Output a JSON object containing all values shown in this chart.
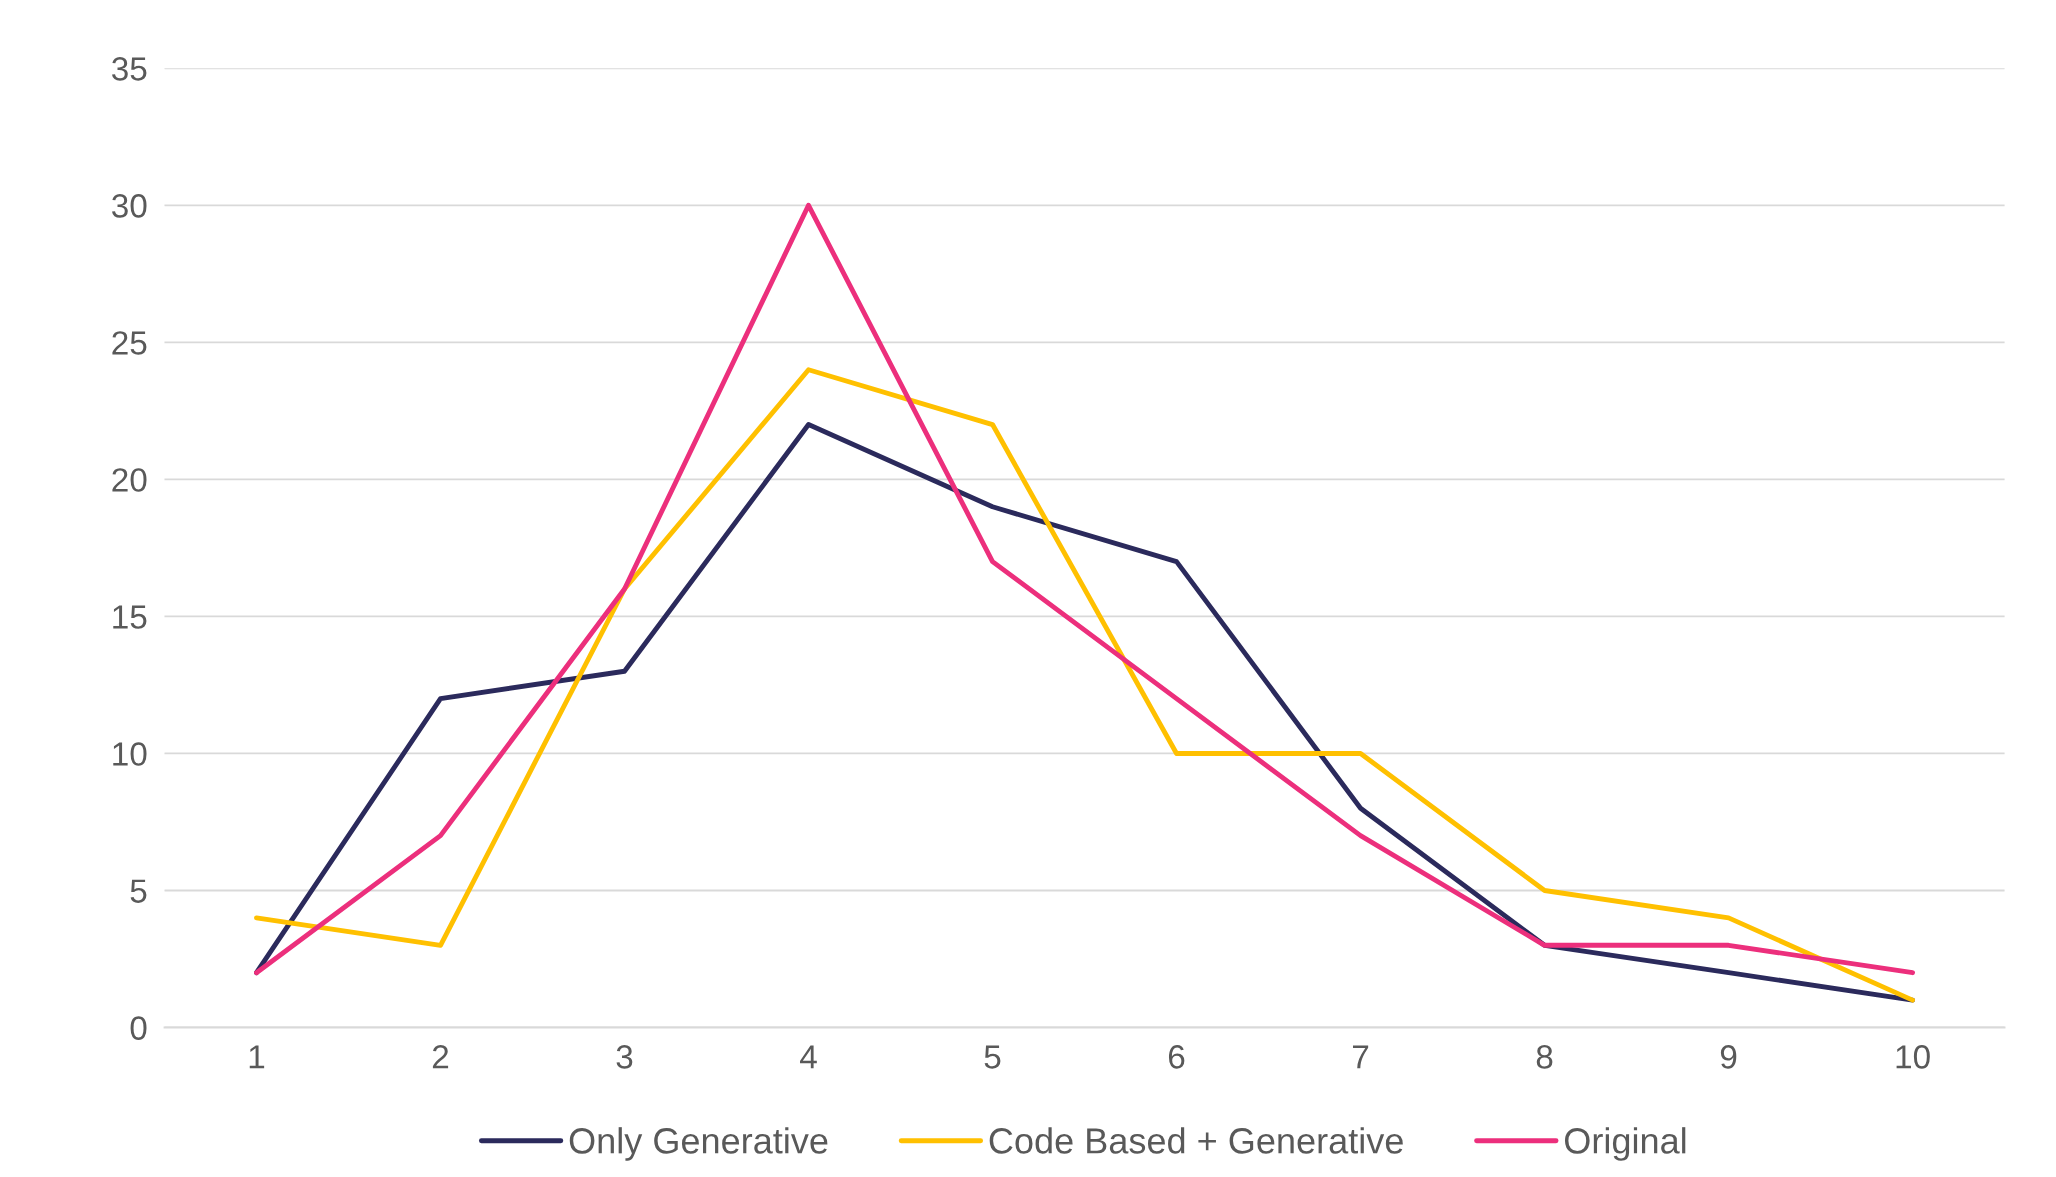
{
  "chart_data": {
    "type": "line",
    "categories": [
      "1",
      "2",
      "3",
      "4",
      "5",
      "6",
      "7",
      "8",
      "9",
      "10"
    ],
    "series": [
      {
        "name": "Only Generative",
        "color": "#2b2a5c",
        "values": [
          2,
          12,
          13,
          22,
          19,
          17,
          8,
          3,
          2,
          1
        ]
      },
      {
        "name": "Code Based + Generative",
        "color": "#ffc000",
        "values": [
          4,
          3,
          16,
          24,
          22,
          10,
          10,
          5,
          4,
          1
        ]
      },
      {
        "name": "Original",
        "color": "#ec2f7c",
        "values": [
          2,
          7,
          16,
          30,
          17,
          12,
          7,
          3,
          3,
          2
        ]
      }
    ],
    "ylim": [
      0,
      35
    ],
    "yticks": [
      0,
      5,
      10,
      15,
      20,
      25,
      30,
      35
    ],
    "grid": "y",
    "legend": "bottom",
    "marker": "none",
    "line_style": "solid"
  }
}
